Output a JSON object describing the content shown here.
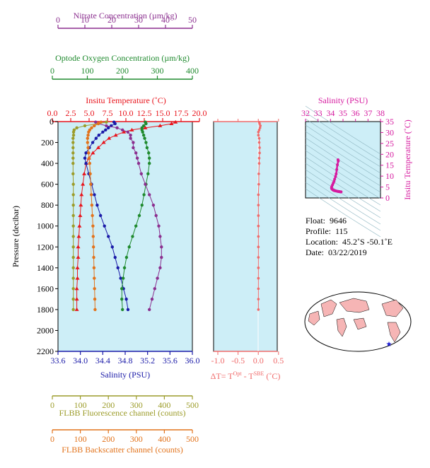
{
  "colors": {
    "nitrate": "#8b2f8f",
    "oxygen": "#1f8a2e",
    "temperature": "#e8141c",
    "salinity": "#1a1aa8",
    "fluorescence": "#9c9c2a",
    "backscatter": "#e2731c",
    "delta": "#f06a6a",
    "tsInsitu": "#d61a9f",
    "plotBg": "#cdeef7"
  },
  "axes": {
    "nitrate": {
      "label": "Nitrate Concentration (µm/kg)",
      "ticks": [
        "0",
        "10",
        "20",
        "30",
        "40",
        "50"
      ]
    },
    "oxygen": {
      "label": "Optode Oxygen Concentration (µm/kg)",
      "ticks": [
        "0",
        "100",
        "200",
        "300",
        "400"
      ]
    },
    "temperature": {
      "label": "Insitu Temperature (˚C)",
      "ticks": [
        "0.0",
        "2.5",
        "5.0",
        "7.5",
        "10.0",
        "12.5",
        "15.0",
        "17.5",
        "20.0"
      ]
    },
    "pressure": {
      "label": "Pressure (decibar)",
      "ticks": [
        "0",
        "200",
        "400",
        "600",
        "800",
        "1000",
        "1200",
        "1400",
        "1600",
        "1800",
        "2000",
        "2200"
      ]
    },
    "salinity": {
      "label": "Salinity (PSU)",
      "ticks": [
        "33.6",
        "34.0",
        "34.4",
        "34.8",
        "35.2",
        "35.6",
        "36.0"
      ]
    },
    "fluorescence": {
      "label": "FLBB Fluorescence channel (counts)",
      "ticks": [
        "0",
        "100",
        "200",
        "300",
        "400",
        "500"
      ]
    },
    "backscatter": {
      "label": "FLBB Backscatter channel (counts)",
      "ticks": [
        "0",
        "100",
        "200",
        "300",
        "400",
        "500"
      ]
    },
    "delta": {
      "label_main": "ΔT= T",
      "label_sup1": "Opt",
      "label_mid": " - T",
      "label_sup2": "SBE",
      "label_end": " (˚C)",
      "ticks": [
        "-1.0",
        "-0.5",
        "0.0",
        "0.5"
      ]
    },
    "tsSalinity": {
      "label": "Salinity (PSU)",
      "ticks": [
        "32",
        "33",
        "34",
        "35",
        "36",
        "37",
        "38"
      ]
    },
    "tsTemperature": {
      "label": "Insitu Temperature (˚C)",
      "ticks": [
        "0",
        "5",
        "10",
        "15",
        "20",
        "25",
        "30",
        "35"
      ]
    }
  },
  "info": {
    "float_label": "Float:",
    "float": "9646",
    "profile_label": "Profile:",
    "profile": "115",
    "location_label": "Location:",
    "location": "45.2˚S  -50.1˚E",
    "date_label": "Date:",
    "date": "03/22/2019"
  },
  "chart_data": {
    "type": "line",
    "ylim": [
      2200,
      0
    ],
    "pressure": [
      5,
      20,
      40,
      60,
      80,
      100,
      130,
      160,
      200,
      250,
      300,
      350,
      400,
      500,
      600,
      700,
      800,
      900,
      1000,
      1100,
      1200,
      1300,
      1400,
      1500,
      1600,
      1700,
      1800
    ],
    "series": [
      {
        "key": "temperature",
        "xlim": [
          0,
          20
        ],
        "values": [
          17.5,
          16.9,
          15.2,
          13.0,
          11.0,
          9.8,
          8.6,
          7.6,
          6.8,
          6.0,
          5.2,
          4.6,
          4.2,
          3.9,
          3.7,
          3.5,
          3.4,
          3.3,
          3.2,
          3.1,
          3.0,
          3.0,
          2.9,
          2.9,
          2.8,
          2.8,
          2.8
        ]
      },
      {
        "key": "salinity",
        "xlim": [
          33.6,
          36.0
        ],
        "values": [
          34.6,
          34.62,
          34.55,
          34.5,
          34.45,
          34.4,
          34.33,
          34.28,
          34.22,
          34.16,
          34.1,
          34.08,
          34.1,
          34.15,
          34.2,
          34.25,
          34.3,
          34.36,
          34.43,
          34.5,
          34.57,
          34.62,
          34.67,
          34.72,
          34.77,
          34.82,
          34.85
        ]
      },
      {
        "key": "oxygen",
        "xlim": [
          0,
          400
        ],
        "values": [
          260,
          262,
          255,
          250,
          250,
          252,
          255,
          258,
          262,
          265,
          270,
          272,
          272,
          268,
          262,
          256,
          250,
          242,
          232,
          222,
          212,
          204,
          198,
          194,
          190,
          190,
          192
        ]
      },
      {
        "key": "nitrate",
        "xlim": [
          0,
          50
        ],
        "values": [
          14,
          15,
          18,
          22,
          24,
          26,
          27,
          27,
          28,
          28,
          29,
          29.5,
          30,
          31,
          32.5,
          34,
          35.5,
          36.5,
          37.5,
          38,
          38.5,
          38.5,
          38,
          37,
          36,
          35,
          34
        ]
      },
      {
        "key": "fluorescence",
        "xlim": [
          0,
          500
        ],
        "values": [
          180,
          150,
          100,
          70,
          60,
          58,
          58,
          56,
          56,
          56,
          56,
          56,
          56,
          56,
          57,
          57,
          57,
          57,
          57,
          57,
          57,
          57,
          57,
          57,
          57,
          57,
          57
        ]
      },
      {
        "key": "backscatter",
        "xlim": [
          0,
          500
        ],
        "values": [
          160,
          150,
          135,
          125,
          118,
          114,
          112,
          110,
          110,
          112,
          114,
          116,
          118,
          120,
          122,
          124,
          126,
          128,
          130,
          131,
          132,
          133,
          134,
          135,
          136,
          137,
          138
        ]
      },
      {
        "key": "delta",
        "xlim": [
          -1.0,
          0.5
        ],
        "values": [
          0.02,
          0.03,
          0.05,
          0.04,
          0.02,
          0.0,
          0.0,
          0.02,
          0.02,
          0.03,
          0.03,
          0.02,
          0.02,
          0.01,
          0.01,
          0.0,
          0.0,
          0.0,
          0.0,
          0.0,
          0.0,
          0.0,
          0.0,
          0.0,
          0.0,
          0.0,
          0.0
        ]
      }
    ]
  }
}
